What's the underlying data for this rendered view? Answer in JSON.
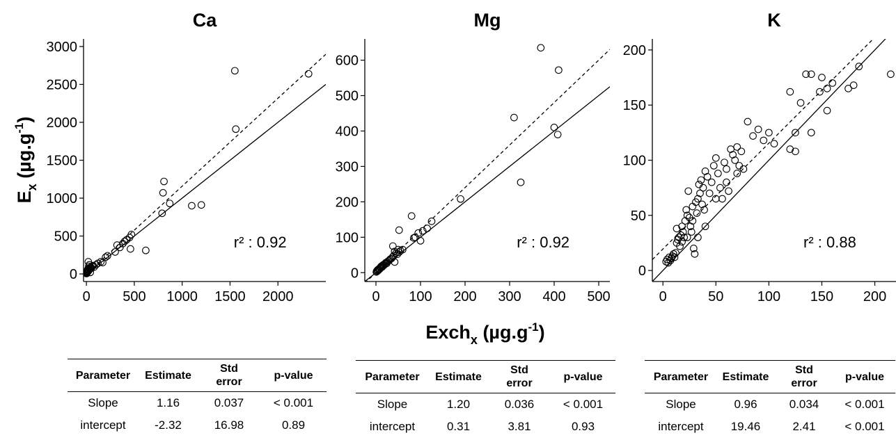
{
  "axis_labels": {
    "y_main": "E",
    "y_sub": "x",
    "y_unit_pre": " (µg.g",
    "y_unit_sup": "-1",
    "y_unit_post": ")",
    "x_main": "Exch",
    "x_sub": "x",
    "x_unit_pre": " (µg.g",
    "x_unit_sup": "-1",
    "x_unit_post": ")"
  },
  "chart_data": [
    {
      "type": "scatter",
      "title": "Ca",
      "xlim": [
        -30,
        2500
      ],
      "ylim": [
        -100,
        3100
      ],
      "xticks": [
        0,
        500,
        1000,
        1500,
        2000
      ],
      "yticks": [
        0,
        500,
        1000,
        1500,
        2000,
        2500,
        3000
      ],
      "r2_label": "r² : 0.92",
      "fit": {
        "slope": 1.16,
        "intercept": -2.32
      },
      "identity_line": true,
      "points": [
        [
          2,
          5
        ],
        [
          3,
          10
        ],
        [
          4,
          20
        ],
        [
          5,
          25
        ],
        [
          6,
          15
        ],
        [
          7,
          30
        ],
        [
          8,
          40
        ],
        [
          10,
          50
        ],
        [
          12,
          35
        ],
        [
          15,
          60
        ],
        [
          18,
          55
        ],
        [
          20,
          70
        ],
        [
          25,
          45
        ],
        [
          30,
          80
        ],
        [
          35,
          65
        ],
        [
          40,
          20
        ],
        [
          45,
          90
        ],
        [
          50,
          75
        ],
        [
          60,
          100
        ],
        [
          70,
          110
        ],
        [
          80,
          90
        ],
        [
          100,
          120
        ],
        [
          120,
          140
        ],
        [
          150,
          160
        ],
        [
          170,
          150
        ],
        [
          200,
          220
        ],
        [
          220,
          240
        ],
        [
          300,
          290
        ],
        [
          320,
          380
        ],
        [
          350,
          350
        ],
        [
          380,
          400
        ],
        [
          400,
          430
        ],
        [
          420,
          450
        ],
        [
          450,
          480
        ],
        [
          460,
          330
        ],
        [
          470,
          520
        ],
        [
          20,
          160
        ],
        [
          15,
          30
        ],
        [
          25,
          100
        ],
        [
          30,
          120
        ],
        [
          620,
          310
        ],
        [
          790,
          800
        ],
        [
          800,
          1070
        ],
        [
          810,
          1220
        ],
        [
          870,
          930
        ],
        [
          1100,
          900
        ],
        [
          1200,
          910
        ],
        [
          1550,
          2680
        ],
        [
          1560,
          1910
        ],
        [
          2320,
          2640
        ]
      ]
    },
    {
      "type": "scatter",
      "title": "Mg",
      "xlim": [
        -25,
        525
      ],
      "ylim": [
        -25,
        660
      ],
      "xticks": [
        0,
        100,
        200,
        300,
        400,
        500
      ],
      "yticks": [
        0,
        100,
        200,
        300,
        400,
        500,
        600
      ],
      "r2_label": "r² : 0.92",
      "fit": {
        "slope": 1.2,
        "intercept": 0.31
      },
      "identity_line": true,
      "points": [
        [
          1,
          2
        ],
        [
          2,
          5
        ],
        [
          3,
          4
        ],
        [
          4,
          8
        ],
        [
          5,
          6
        ],
        [
          6,
          10
        ],
        [
          7,
          9
        ],
        [
          8,
          12
        ],
        [
          9,
          11
        ],
        [
          10,
          15
        ],
        [
          11,
          14
        ],
        [
          12,
          18
        ],
        [
          14,
          16
        ],
        [
          15,
          20
        ],
        [
          16,
          22
        ],
        [
          18,
          21
        ],
        [
          20,
          25
        ],
        [
          22,
          28
        ],
        [
          24,
          26
        ],
        [
          25,
          30
        ],
        [
          28,
          33
        ],
        [
          30,
          35
        ],
        [
          32,
          38
        ],
        [
          35,
          40
        ],
        [
          38,
          45
        ],
        [
          40,
          48
        ],
        [
          42,
          60
        ],
        [
          45,
          55
        ],
        [
          48,
          52
        ],
        [
          50,
          65
        ],
        [
          52,
          58
        ],
        [
          55,
          62
        ],
        [
          60,
          65
        ],
        [
          38,
          75
        ],
        [
          42,
          30
        ],
        [
          52,
          120
        ],
        [
          80,
          160
        ],
        [
          85,
          98
        ],
        [
          88,
          100
        ],
        [
          95,
          112
        ],
        [
          100,
          90
        ],
        [
          105,
          118
        ],
        [
          115,
          125
        ],
        [
          125,
          145
        ],
        [
          190,
          208
        ],
        [
          310,
          438
        ],
        [
          325,
          255
        ],
        [
          370,
          635
        ],
        [
          400,
          410
        ],
        [
          408,
          390
        ],
        [
          410,
          572
        ]
      ]
    },
    {
      "type": "scatter",
      "title": "K",
      "xlim": [
        -10,
        220
      ],
      "ylim": [
        -10,
        210
      ],
      "xticks": [
        0,
        50,
        100,
        150,
        200
      ],
      "yticks": [
        0,
        50,
        100,
        150,
        200
      ],
      "r2_label": "r² : 0.88",
      "fit": {
        "slope": 0.96,
        "intercept": 19.46
      },
      "identity_line": true,
      "points": [
        [
          3,
          8
        ],
        [
          4,
          10
        ],
        [
          5,
          7
        ],
        [
          6,
          12
        ],
        [
          7,
          9
        ],
        [
          8,
          11
        ],
        [
          9,
          13
        ],
        [
          10,
          15
        ],
        [
          11,
          12
        ],
        [
          12,
          16
        ],
        [
          13,
          25
        ],
        [
          14,
          28
        ],
        [
          15,
          30
        ],
        [
          16,
          22
        ],
        [
          17,
          32
        ],
        [
          18,
          26
        ],
        [
          19,
          35
        ],
        [
          20,
          30
        ],
        [
          21,
          45
        ],
        [
          22,
          55
        ],
        [
          23,
          50
        ],
        [
          24,
          72
        ],
        [
          25,
          48
        ],
        [
          26,
          40
        ],
        [
          27,
          35
        ],
        [
          28,
          58
        ],
        [
          29,
          20
        ],
        [
          30,
          15
        ],
        [
          31,
          62
        ],
        [
          32,
          52
        ],
        [
          33,
          65
        ],
        [
          34,
          78
        ],
        [
          35,
          70
        ],
        [
          36,
          82
        ],
        [
          37,
          60
        ],
        [
          38,
          75
        ],
        [
          39,
          55
        ],
        [
          40,
          90
        ],
        [
          42,
          85
        ],
        [
          44,
          70
        ],
        [
          46,
          80
        ],
        [
          48,
          95
        ],
        [
          50,
          102
        ],
        [
          52,
          88
        ],
        [
          54,
          75
        ],
        [
          56,
          65
        ],
        [
          58,
          98
        ],
        [
          60,
          92
        ],
        [
          62,
          72
        ],
        [
          64,
          110
        ],
        [
          66,
          105
        ],
        [
          68,
          100
        ],
        [
          70,
          112
        ],
        [
          72,
          95
        ],
        [
          74,
          108
        ],
        [
          76,
          92
        ],
        [
          80,
          135
        ],
        [
          85,
          122
        ],
        [
          90,
          128
        ],
        [
          95,
          118
        ],
        [
          100,
          125
        ],
        [
          105,
          115
        ],
        [
          120,
          162
        ],
        [
          125,
          108
        ],
        [
          130,
          152
        ],
        [
          135,
          178
        ],
        [
          140,
          178
        ],
        [
          148,
          162
        ],
        [
          150,
          175
        ],
        [
          155,
          145
        ],
        [
          160,
          170
        ],
        [
          175,
          165
        ],
        [
          180,
          168
        ],
        [
          185,
          185
        ],
        [
          215,
          178
        ],
        [
          13,
          38
        ],
        [
          18,
          40
        ],
        [
          23,
          30
        ],
        [
          28,
          45
        ],
        [
          33,
          30
        ],
        [
          40,
          40
        ],
        [
          50,
          65
        ],
        [
          60,
          80
        ],
        [
          70,
          88
        ],
        [
          120,
          110
        ],
        [
          125,
          125
        ],
        [
          140,
          125
        ],
        [
          155,
          165
        ]
      ]
    }
  ],
  "tables": [
    {
      "headers": [
        "Parameter",
        "Estimate",
        "Std error",
        "p-value"
      ],
      "rows": [
        [
          "Slope",
          "1.16",
          "0.037",
          "< 0.001"
        ],
        [
          "intercept",
          "-2.32",
          "16.98",
          "0.89"
        ]
      ]
    },
    {
      "headers": [
        "Parameter",
        "Estimate",
        "Std error",
        "p-value"
      ],
      "rows": [
        [
          "Slope",
          "1.20",
          "0.036",
          "< 0.001"
        ],
        [
          "intercept",
          "0.31",
          "3.81",
          "0.93"
        ]
      ]
    },
    {
      "headers": [
        "Parameter",
        "Estimate",
        "Std error",
        "p-value"
      ],
      "rows": [
        [
          "Slope",
          "0.96",
          "0.034",
          "< 0.001"
        ],
        [
          "intercept",
          "19.46",
          "2.41",
          "< 0.001"
        ]
      ]
    }
  ]
}
